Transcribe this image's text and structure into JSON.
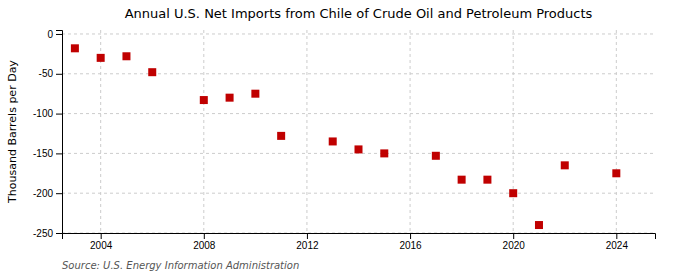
{
  "chart_data": {
    "type": "scatter",
    "title": "Annual U.S. Net Imports from Chile of Crude Oil and Petroleum Products",
    "ylabel": "Thousand Barrels per Day",
    "source": "Source: U.S. Energy Information Administration",
    "x": [
      2003,
      2004,
      2005,
      2006,
      2008,
      2009,
      2010,
      2011,
      2013,
      2014,
      2015,
      2017,
      2018,
      2019,
      2020,
      2021,
      2022,
      2024
    ],
    "values": [
      -18,
      -30,
      -28,
      -48,
      -83,
      -80,
      -75,
      -128,
      -135,
      -145,
      -150,
      -153,
      -183,
      -183,
      -200,
      -240,
      -165,
      -175
    ],
    "color": "#c00000",
    "marker": "square",
    "xlim": [
      2002.5,
      2025.5
    ],
    "ylim": [
      -250,
      5
    ],
    "xticks": [
      2004,
      2008,
      2012,
      2016,
      2020,
      2024
    ],
    "yticks": [
      0,
      -50,
      -100,
      -150,
      -200,
      -250
    ],
    "grid": true
  }
}
